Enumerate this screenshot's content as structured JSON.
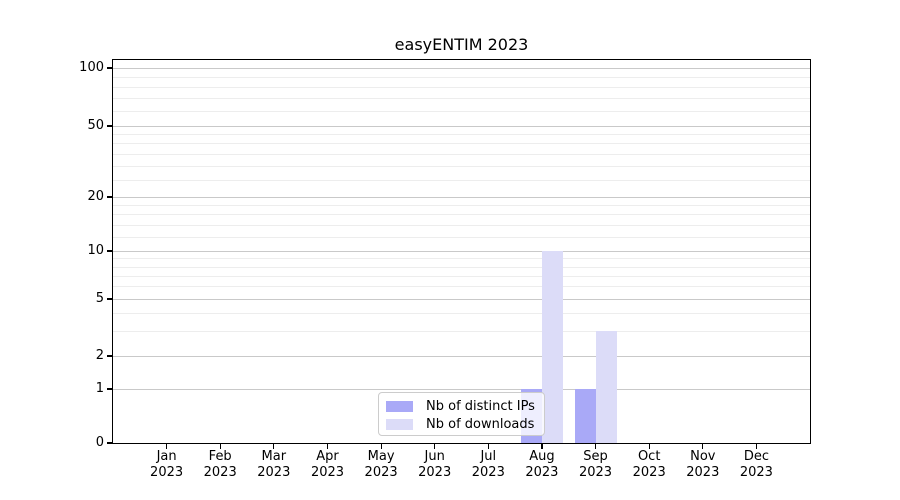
{
  "figure_title": "easyENTIM 2023",
  "chart_data": {
    "type": "bar",
    "title": "easyENTIM 2023",
    "categories": [
      [
        "Jan",
        "2023"
      ],
      [
        "Feb",
        "2023"
      ],
      [
        "Mar",
        "2023"
      ],
      [
        "Apr",
        "2023"
      ],
      [
        "May",
        "2023"
      ],
      [
        "Jun",
        "2023"
      ],
      [
        "Jul",
        "2023"
      ],
      [
        "Aug",
        "2023"
      ],
      [
        "Sep",
        "2023"
      ],
      [
        "Oct",
        "2023"
      ],
      [
        "Nov",
        "2023"
      ],
      [
        "Dec",
        "2023"
      ]
    ],
    "series": [
      {
        "name": "Nb of distinct IPs",
        "color": "#a9a9f7",
        "values": [
          0,
          0,
          0,
          0,
          0,
          0,
          0,
          1,
          1,
          0,
          0,
          0
        ]
      },
      {
        "name": "Nb of downloads",
        "color": "#dcdcf8",
        "values": [
          0,
          0,
          0,
          0,
          0,
          0,
          0,
          10,
          3,
          0,
          0,
          0
        ]
      }
    ],
    "y_axis": {
      "scale": "symlog",
      "ticks": [
        0,
        1,
        2,
        5,
        10,
        20,
        50,
        100
      ],
      "minor_gridlines": [
        3,
        4,
        6,
        7,
        8,
        9,
        12,
        14,
        16,
        18,
        25,
        30,
        35,
        40,
        45,
        60,
        70,
        80,
        90
      ],
      "ylim": [
        0,
        100
      ]
    },
    "x_axis": {
      "year_label": "2023"
    },
    "legend": {
      "position": "lower-center"
    },
    "grid": true,
    "colors": {
      "distinct_ips": "#a9a9f7",
      "downloads": "#dcdcf8",
      "grid_major": "#c9c9c9",
      "grid_minor": "#ededed",
      "axis": "#000000",
      "legend_border": "#cccccc"
    }
  }
}
